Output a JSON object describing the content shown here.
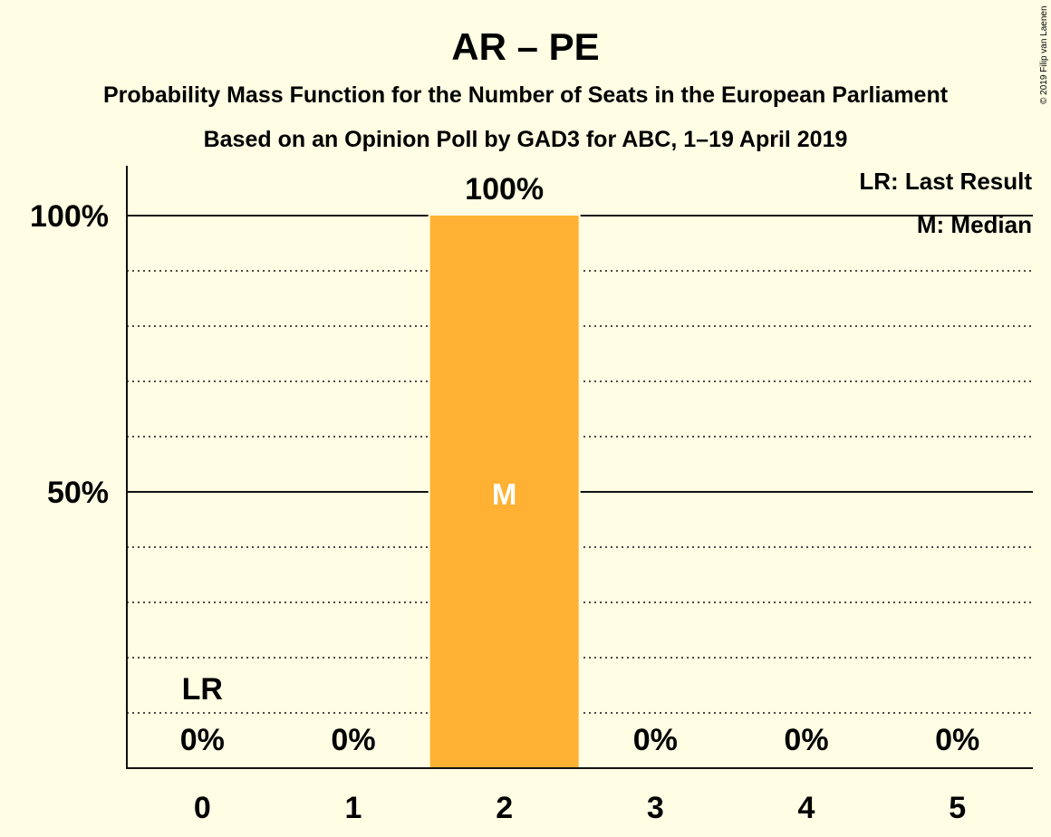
{
  "chart_data": {
    "type": "bar",
    "title": "AR – PE",
    "subtitle_1": "Probability Mass Function for the Number of Seats in the European Parliament",
    "subtitle_2": "Based on an Opinion Poll by GAD3 for ABC, 1–19 April 2019",
    "categories": [
      "0",
      "1",
      "2",
      "3",
      "4",
      "5"
    ],
    "values": [
      0,
      0,
      100,
      0,
      0,
      0
    ],
    "value_labels": [
      "0%",
      "0%",
      "100%",
      "0%",
      "0%",
      "0%"
    ],
    "ylim": [
      0,
      110
    ],
    "y_ticks": [
      {
        "value": 50,
        "label": "50%"
      },
      {
        "value": 100,
        "label": "100%"
      }
    ],
    "minor_grid": [
      10,
      20,
      30,
      40,
      60,
      70,
      80,
      90
    ],
    "bar_color": "#FFB133",
    "last_result": {
      "category": "0",
      "label": "LR"
    },
    "median": {
      "category": "2",
      "label": "M"
    },
    "legend": [
      "LR: Last Result",
      "M: Median"
    ],
    "legend_position": "top-right",
    "copyright": "© 2019 Filip van Laenen"
  }
}
